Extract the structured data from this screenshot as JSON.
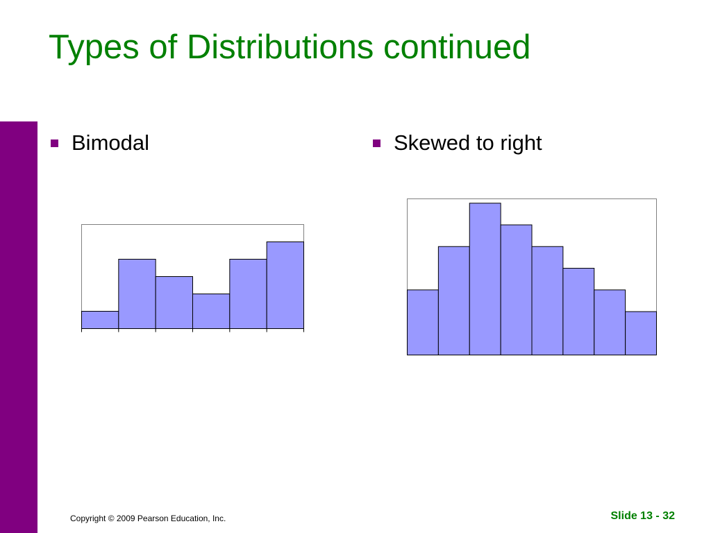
{
  "slide": {
    "title": "Types of Distributions continued",
    "copyright": "Copyright © 2009 Pearson Education, Inc.",
    "slide_number": "Slide 13 - 32"
  },
  "colors": {
    "title": "#008000",
    "accent": "#800080",
    "bar_fill": "#9999ff",
    "bar_stroke": "#000000",
    "frame": "#808080"
  },
  "bullets": [
    {
      "label": "Bimodal"
    },
    {
      "label": "Skewed to right"
    }
  ],
  "chart_data": [
    {
      "type": "bar",
      "values": [
        1,
        4,
        3,
        2,
        4,
        5
      ],
      "ylim": [
        0,
        6
      ],
      "grid": false,
      "legend": "none"
    },
    {
      "type": "bar",
      "values": [
        3,
        5,
        7,
        6,
        5,
        4,
        3,
        2
      ],
      "ylim": [
        0,
        7.2
      ],
      "grid": false,
      "legend": "none"
    }
  ]
}
